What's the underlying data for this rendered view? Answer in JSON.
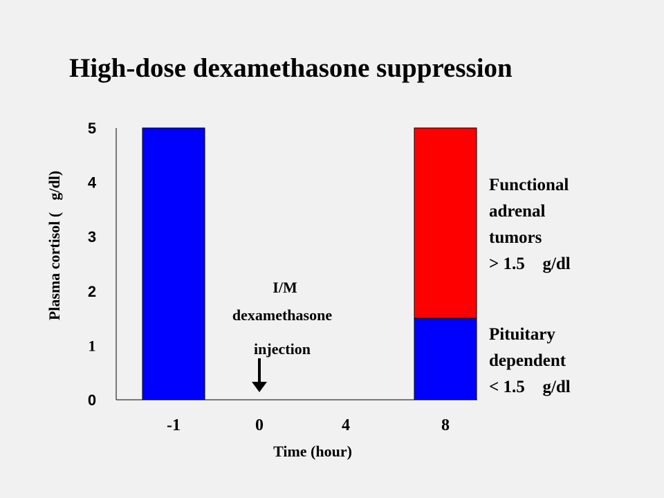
{
  "title": "High-dose dexamethasone suppression",
  "chart_data": {
    "type": "bar",
    "title": "High-dose dexamethasone suppression",
    "xlabel": "Time (hour)",
    "ylabel": "Plasma cortisol (g/dl)",
    "ylim": [
      0,
      5
    ],
    "yticks": [
      "0",
      "1",
      "2",
      "3",
      "4",
      "5"
    ],
    "categories": [
      "-1",
      "0",
      "4",
      "8"
    ],
    "stacked": true,
    "series": [
      {
        "values": [
          5,
          0,
          0,
          1.5
        ],
        "color": "#0000ff"
      },
      {
        "values": [
          0,
          0,
          0,
          3.5
        ],
        "color": "#ff0000"
      }
    ],
    "annotation": {
      "lines": [
        "I/M",
        "dexamethasone",
        "injection"
      ],
      "target_category": "0",
      "arrow": "down"
    },
    "legend_placement": "right",
    "grid": false
  },
  "side_labels": {
    "functional": [
      "Functional",
      "adrenal",
      "tumors",
      "> 1.5 g/dl"
    ],
    "pituitary": [
      "Pituitary",
      "dependent",
      "< 1.5 g/dl"
    ]
  }
}
